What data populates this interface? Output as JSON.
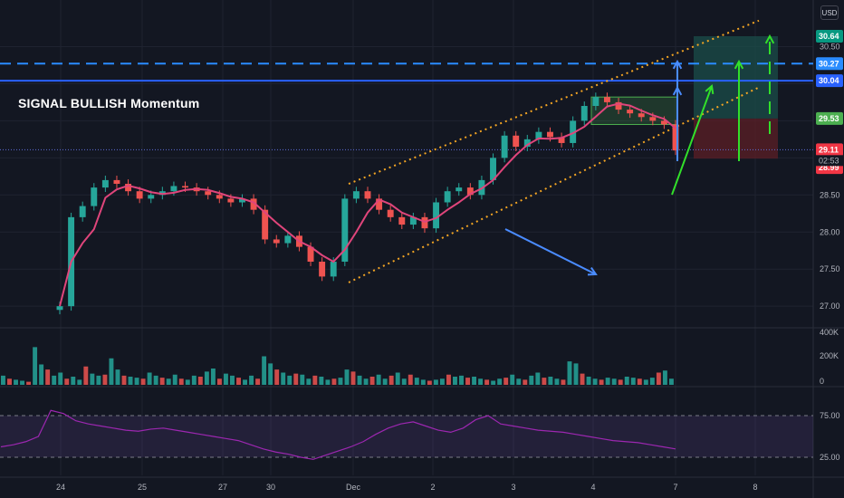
{
  "app": {
    "currency_label": "USD",
    "signal_title": "SIGNAL BULLISH Momentum",
    "countdown": "02:53"
  },
  "colors": {
    "background": "#131722",
    "grid": "#1f2330",
    "up": "#26a69a",
    "down": "#ef5350",
    "ma_line": "#e0457b",
    "channel": "#f5a623",
    "blue_line": "#2962ff",
    "blue_dash": "#2a8cff",
    "arrow_green": "#32e02a",
    "arrow_blue": "#4a8cff",
    "rsi_line": "#9c27b0",
    "target_zone": "#1b4d4a",
    "stop_zone": "#5c1f26",
    "entry_box": "#4caf50"
  },
  "chart_data": [
    {
      "type": "line",
      "panel": "price",
      "y_axis": {
        "ticks": [
          30.5,
          30.0,
          29.5,
          29.0,
          28.5,
          28.0,
          27.5,
          27.0
        ],
        "tick_labels": [
          "30.50",
          "30.00",
          "29.50",
          "29.00",
          "28.50",
          "28.00",
          "27.50",
          "27.00"
        ],
        "ylim": [
          26.7,
          30.9
        ]
      },
      "x_axis": {
        "tick_labels": [
          "24",
          "25",
          "27",
          "30",
          "Dec",
          "2",
          "3",
          "4",
          "7",
          "8"
        ]
      },
      "price_badges": [
        {
          "value": "30.64",
          "color": "#089981"
        },
        {
          "value": "30.27",
          "color": "#2a8cff"
        },
        {
          "value": "30.04",
          "color": "#2962ff"
        },
        {
          "value": "29.53",
          "color": "#4caf50"
        },
        {
          "value": "29.11",
          "color": "#f23645"
        },
        {
          "value": "28.99",
          "color": "#f23645"
        }
      ],
      "horizontal_lines": [
        {
          "value": 30.27,
          "style": "dashed"
        },
        {
          "value": 30.04,
          "style": "solid"
        },
        {
          "value": 29.11,
          "style": "dotted"
        }
      ],
      "channel": {
        "upper": [
          [
            0.0,
            28.65
          ],
          [
            1.0,
            30.85
          ]
        ],
        "lower": [
          [
            0.0,
            27.32
          ],
          [
            1.0,
            29.95
          ]
        ]
      },
      "close_series": [
        27.0,
        28.2,
        28.35,
        28.6,
        28.7,
        28.65,
        28.55,
        28.45,
        28.5,
        28.55,
        28.62,
        28.6,
        28.55,
        28.5,
        28.45,
        28.4,
        28.45,
        28.3,
        27.9,
        27.85,
        27.95,
        27.8,
        27.6,
        27.4,
        27.6,
        28.45,
        28.55,
        28.45,
        28.3,
        28.2,
        28.1,
        28.2,
        28.05,
        28.4,
        28.55,
        28.6,
        28.5,
        28.7,
        29.0,
        29.3,
        29.15,
        29.25,
        29.35,
        29.28,
        29.2,
        29.5,
        29.7,
        29.82,
        29.75,
        29.65,
        29.6,
        29.55,
        29.5,
        29.45,
        29.1
      ]
    },
    {
      "type": "bar",
      "panel": "volume",
      "y_axis": {
        "tick_labels": [
          "400K",
          "200K",
          "0"
        ],
        "ylim": [
          0,
          400000
        ]
      },
      "values": [
        90000,
        60000,
        50000,
        40000,
        30000,
        370000,
        200000,
        150000,
        90000,
        120000,
        60000,
        80000,
        50000,
        180000,
        110000,
        90000,
        100000,
        260000,
        150000,
        90000,
        80000,
        70000,
        60000,
        120000,
        90000,
        70000,
        60000,
        100000,
        60000,
        50000,
        90000,
        80000,
        130000,
        160000,
        60000,
        110000,
        90000,
        70000,
        50000,
        90000,
        60000,
        280000,
        210000,
        150000,
        120000,
        90000,
        110000,
        100000,
        60000,
        90000,
        80000,
        50000,
        60000,
        70000,
        150000,
        130000,
        90000,
        60000,
        80000,
        100000,
        60000,
        90000,
        120000,
        60000,
        100000,
        70000,
        50000,
        40000,
        50000,
        60000,
        100000,
        80000,
        90000,
        70000,
        80000,
        60000,
        50000,
        40000,
        60000,
        70000,
        100000,
        60000,
        50000,
        90000,
        120000,
        70000,
        80000,
        60000,
        50000,
        230000,
        210000,
        110000,
        80000,
        60000,
        50000,
        70000,
        60000,
        50000,
        80000,
        70000,
        60000,
        50000,
        70000,
        120000,
        140000,
        60000
      ]
    },
    {
      "type": "line",
      "panel": "rsi",
      "y_axis": {
        "tick_labels": [
          "75.00",
          "25.00"
        ],
        "ylim": [
          0,
          100
        ]
      },
      "bands": [
        70,
        30
      ],
      "values": [
        40,
        42,
        45,
        50,
        75,
        72,
        65,
        62,
        60,
        58,
        56,
        55,
        57,
        58,
        56,
        54,
        52,
        50,
        48,
        46,
        42,
        38,
        35,
        33,
        30,
        28,
        32,
        36,
        40,
        45,
        52,
        58,
        62,
        64,
        60,
        56,
        54,
        58,
        66,
        70,
        62,
        60,
        58,
        56,
        55,
        54,
        52,
        50,
        48,
        46,
        45,
        44,
        42,
        40,
        38
      ]
    }
  ]
}
